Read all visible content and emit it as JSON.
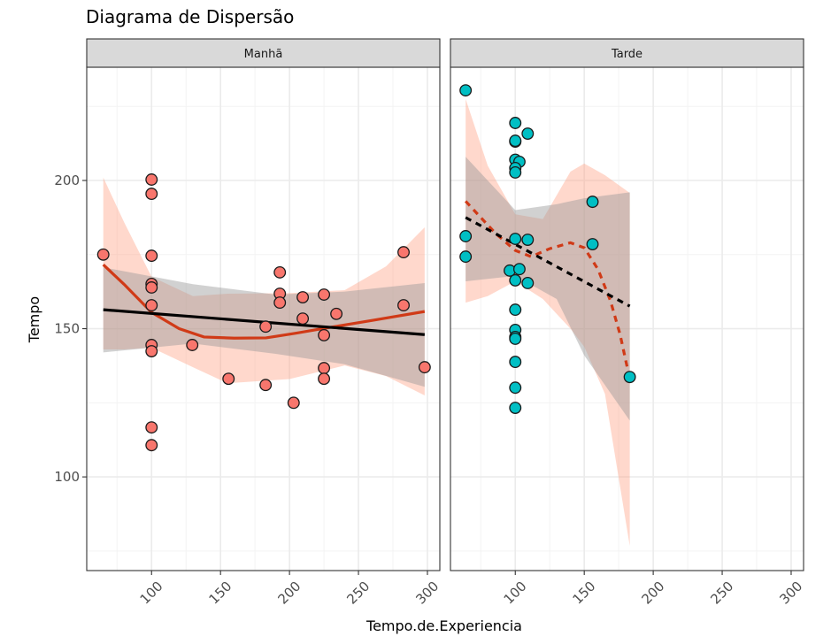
{
  "chart_data": {
    "type": "scatter",
    "title": "Diagrama de Dispersão",
    "xlabel": "Tempo.de.Experiencia",
    "ylabel": "Tempo",
    "xlim": [
      53,
      309
    ],
    "ylim": [
      68.4,
      238.2
    ],
    "x_ticks": [
      100,
      150,
      200,
      250,
      300
    ],
    "y_ticks": [
      100,
      150,
      200
    ],
    "grid": true,
    "colors": {
      "Manhã": "#F8766D",
      "Tarde": "#00BFC4",
      "loess_line": "#D03A17",
      "loess_band": "#FF9E80",
      "lm_line": "#000000",
      "lm_band": "#999999"
    },
    "panels": [
      {
        "label": "Manhã",
        "line_style": "solid",
        "points": [
          [
            65,
            175
          ],
          [
            100,
            200.3
          ],
          [
            100,
            195.5
          ],
          [
            100,
            174.6
          ],
          [
            100,
            165.1
          ],
          [
            100,
            163.9
          ],
          [
            100,
            157.9
          ],
          [
            100,
            144.5
          ],
          [
            100,
            142.4
          ],
          [
            100,
            116.7
          ],
          [
            100,
            110.7
          ],
          [
            129.5,
            144.5
          ],
          [
            155.8,
            133.1
          ],
          [
            182.7,
            131
          ],
          [
            182.7,
            150.7
          ],
          [
            193,
            169
          ],
          [
            193,
            161.8
          ],
          [
            193,
            158.8
          ],
          [
            209.6,
            160.6
          ],
          [
            209.6,
            153.4
          ],
          [
            203,
            125
          ],
          [
            225,
            161.5
          ],
          [
            225,
            147.8
          ],
          [
            225,
            136.7
          ],
          [
            225,
            133.1
          ],
          [
            234,
            155
          ],
          [
            282.7,
            175.8
          ],
          [
            282.7,
            157.9
          ],
          [
            298,
            137
          ]
        ],
        "lm": [
          [
            65,
            156.4
          ],
          [
            298,
            148
          ]
        ],
        "lm_band": [
          [
            65,
            142,
            170.7
          ],
          [
            130,
            145,
            165
          ],
          [
            190,
            141.5,
            161.5
          ],
          [
            240,
            138,
            162.5
          ],
          [
            298,
            130.4,
            165.4
          ]
        ],
        "loess": [
          [
            65,
            171.6
          ],
          [
            80,
            165
          ],
          [
            100,
            155.5
          ],
          [
            120,
            150
          ],
          [
            138,
            147.2
          ],
          [
            160,
            146.8
          ],
          [
            183,
            146.9
          ],
          [
            205,
            148.5
          ],
          [
            225,
            150.1
          ],
          [
            260,
            152.8
          ],
          [
            298,
            155.8
          ]
        ],
        "loess_band": [
          [
            65,
            143,
            201
          ],
          [
            80,
            143,
            186
          ],
          [
            100,
            143.6,
            167.5
          ],
          [
            130,
            137,
            161
          ],
          [
            155,
            131.6,
            161.8
          ],
          [
            200,
            133,
            162
          ],
          [
            240,
            137.6,
            163
          ],
          [
            270,
            134,
            171
          ],
          [
            298,
            127.5,
            184.2
          ]
        ]
      },
      {
        "label": "Tarde",
        "line_style": "dashed",
        "points": [
          [
            64,
            230.4
          ],
          [
            64,
            181.2
          ],
          [
            64,
            174.3
          ],
          [
            100,
            219.4
          ],
          [
            109,
            215.8
          ],
          [
            100,
            213.1
          ],
          [
            100,
            213.4
          ],
          [
            100,
            207
          ],
          [
            103,
            206.3
          ],
          [
            100,
            204.2
          ],
          [
            100,
            202.7
          ],
          [
            100,
            180.3
          ],
          [
            109,
            180
          ],
          [
            96,
            169.6
          ],
          [
            103,
            170.1
          ],
          [
            100,
            166.3
          ],
          [
            109,
            165.4
          ],
          [
            100,
            156.4
          ],
          [
            100,
            149.6
          ],
          [
            100,
            147.2
          ],
          [
            100,
            146.6
          ],
          [
            100,
            138.8
          ],
          [
            100,
            130.1
          ],
          [
            100,
            123.3
          ],
          [
            156,
            192.8
          ],
          [
            156,
            178.5
          ],
          [
            183,
            133.7
          ]
        ],
        "lm": [
          [
            64,
            187.5
          ],
          [
            183,
            157.6
          ]
        ],
        "lm_band": [
          [
            64,
            166,
            208
          ],
          [
            100,
            167.8,
            190
          ],
          [
            130,
            160,
            192
          ],
          [
            150,
            141,
            194
          ],
          [
            183,
            119,
            196
          ]
        ],
        "loess": [
          [
            64,
            193
          ],
          [
            86,
            182
          ],
          [
            100,
            176.4
          ],
          [
            111.5,
            174.3
          ],
          [
            125,
            177
          ],
          [
            140,
            179
          ],
          [
            150,
            177.3
          ],
          [
            160,
            170
          ],
          [
            169,
            159.4
          ],
          [
            176,
            148
          ],
          [
            183,
            133
          ]
        ],
        "loess_band": [
          [
            64,
            158.8,
            227.5
          ],
          [
            80,
            161,
            205
          ],
          [
            100,
            166,
            188.6
          ],
          [
            120,
            160,
            187
          ],
          [
            140,
            150,
            203
          ],
          [
            150,
            143.9,
            205.7
          ],
          [
            165,
            128,
            201.8
          ],
          [
            183,
            76.7,
            195.8
          ]
        ]
      }
    ]
  }
}
